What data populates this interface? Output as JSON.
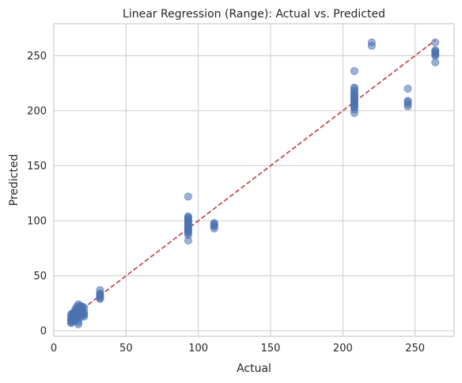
{
  "chart_data": {
    "type": "scatter",
    "title": "Linear Regression (Range): Actual vs. Predicted",
    "xlabel": "Actual",
    "ylabel": "Predicted",
    "xlim": [
      0,
      277
    ],
    "ylim": [
      -5,
      279
    ],
    "xticks": [
      0,
      50,
      100,
      150,
      200,
      250
    ],
    "yticks": [
      0,
      50,
      100,
      150,
      200,
      250
    ],
    "grid": true,
    "colors": {
      "points": "#4c72b0",
      "line": "#c44e52",
      "grid": "#cccccc",
      "frame": "#cccccc"
    },
    "reference_line": {
      "x": [
        12,
        264
      ],
      "y": [
        12,
        264
      ],
      "style": "dashed"
    },
    "series": [
      {
        "points": [
          [
            12,
            7
          ],
          [
            12,
            9
          ],
          [
            12,
            11
          ],
          [
            12,
            13
          ],
          [
            12,
            15
          ],
          [
            12,
            10
          ],
          [
            12,
            8
          ],
          [
            13,
            12
          ],
          [
            13,
            14
          ],
          [
            13,
            9
          ],
          [
            13,
            16
          ],
          [
            13,
            11
          ],
          [
            14,
            10
          ],
          [
            14,
            13
          ],
          [
            14,
            17
          ],
          [
            14,
            12
          ],
          [
            14,
            15
          ],
          [
            15,
            12
          ],
          [
            15,
            18
          ],
          [
            15,
            14
          ],
          [
            15,
            20
          ],
          [
            15,
            16
          ],
          [
            15,
            9
          ],
          [
            16,
            11
          ],
          [
            16,
            15
          ],
          [
            16,
            19
          ],
          [
            16,
            22
          ],
          [
            16,
            13
          ],
          [
            16,
            17
          ],
          [
            17,
            8
          ],
          [
            17,
            6
          ],
          [
            17,
            14
          ],
          [
            17,
            20
          ],
          [
            17,
            24
          ],
          [
            17,
            18
          ],
          [
            18,
            12
          ],
          [
            18,
            16
          ],
          [
            18,
            21
          ],
          [
            18,
            23
          ],
          [
            18,
            19
          ],
          [
            19,
            15
          ],
          [
            19,
            18
          ],
          [
            19,
            22
          ],
          [
            19,
            20
          ],
          [
            19,
            17
          ],
          [
            20,
            14
          ],
          [
            20,
            18
          ],
          [
            20,
            22
          ],
          [
            20,
            16
          ],
          [
            21,
            17
          ],
          [
            21,
            21
          ],
          [
            21,
            13
          ],
          [
            21,
            15
          ],
          [
            32,
            29
          ],
          [
            32,
            30
          ],
          [
            32,
            31
          ],
          [
            32,
            32
          ],
          [
            32,
            33
          ],
          [
            32,
            34
          ],
          [
            32,
            37
          ],
          [
            93,
            82
          ],
          [
            93,
            87
          ],
          [
            93,
            89
          ],
          [
            93,
            90
          ],
          [
            93,
            91
          ],
          [
            93,
            92
          ],
          [
            93,
            93
          ],
          [
            93,
            94
          ],
          [
            93,
            95
          ],
          [
            93,
            96
          ],
          [
            93,
            97
          ],
          [
            93,
            98
          ],
          [
            93,
            99
          ],
          [
            93,
            100
          ],
          [
            93,
            101
          ],
          [
            93,
            102
          ],
          [
            93,
            103
          ],
          [
            93,
            104
          ],
          [
            93,
            122
          ],
          [
            111,
            93
          ],
          [
            111,
            95
          ],
          [
            111,
            96
          ],
          [
            111,
            97
          ],
          [
            111,
            98
          ],
          [
            208,
            198
          ],
          [
            208,
            201
          ],
          [
            208,
            203
          ],
          [
            208,
            204
          ],
          [
            208,
            205
          ],
          [
            208,
            206
          ],
          [
            208,
            207
          ],
          [
            208,
            208
          ],
          [
            208,
            209
          ],
          [
            208,
            210
          ],
          [
            208,
            211
          ],
          [
            208,
            212
          ],
          [
            208,
            213
          ],
          [
            208,
            214
          ],
          [
            208,
            215
          ],
          [
            208,
            216
          ],
          [
            208,
            218
          ],
          [
            208,
            220
          ],
          [
            208,
            221
          ],
          [
            208,
            236
          ],
          [
            220,
            259
          ],
          [
            220,
            262
          ],
          [
            245,
            204
          ],
          [
            245,
            206
          ],
          [
            245,
            208
          ],
          [
            245,
            209
          ],
          [
            245,
            220
          ],
          [
            264,
            244
          ],
          [
            264,
            250
          ],
          [
            264,
            251
          ],
          [
            264,
            252
          ],
          [
            264,
            253
          ],
          [
            264,
            254
          ],
          [
            264,
            255
          ],
          [
            264,
            262
          ]
        ]
      }
    ]
  }
}
